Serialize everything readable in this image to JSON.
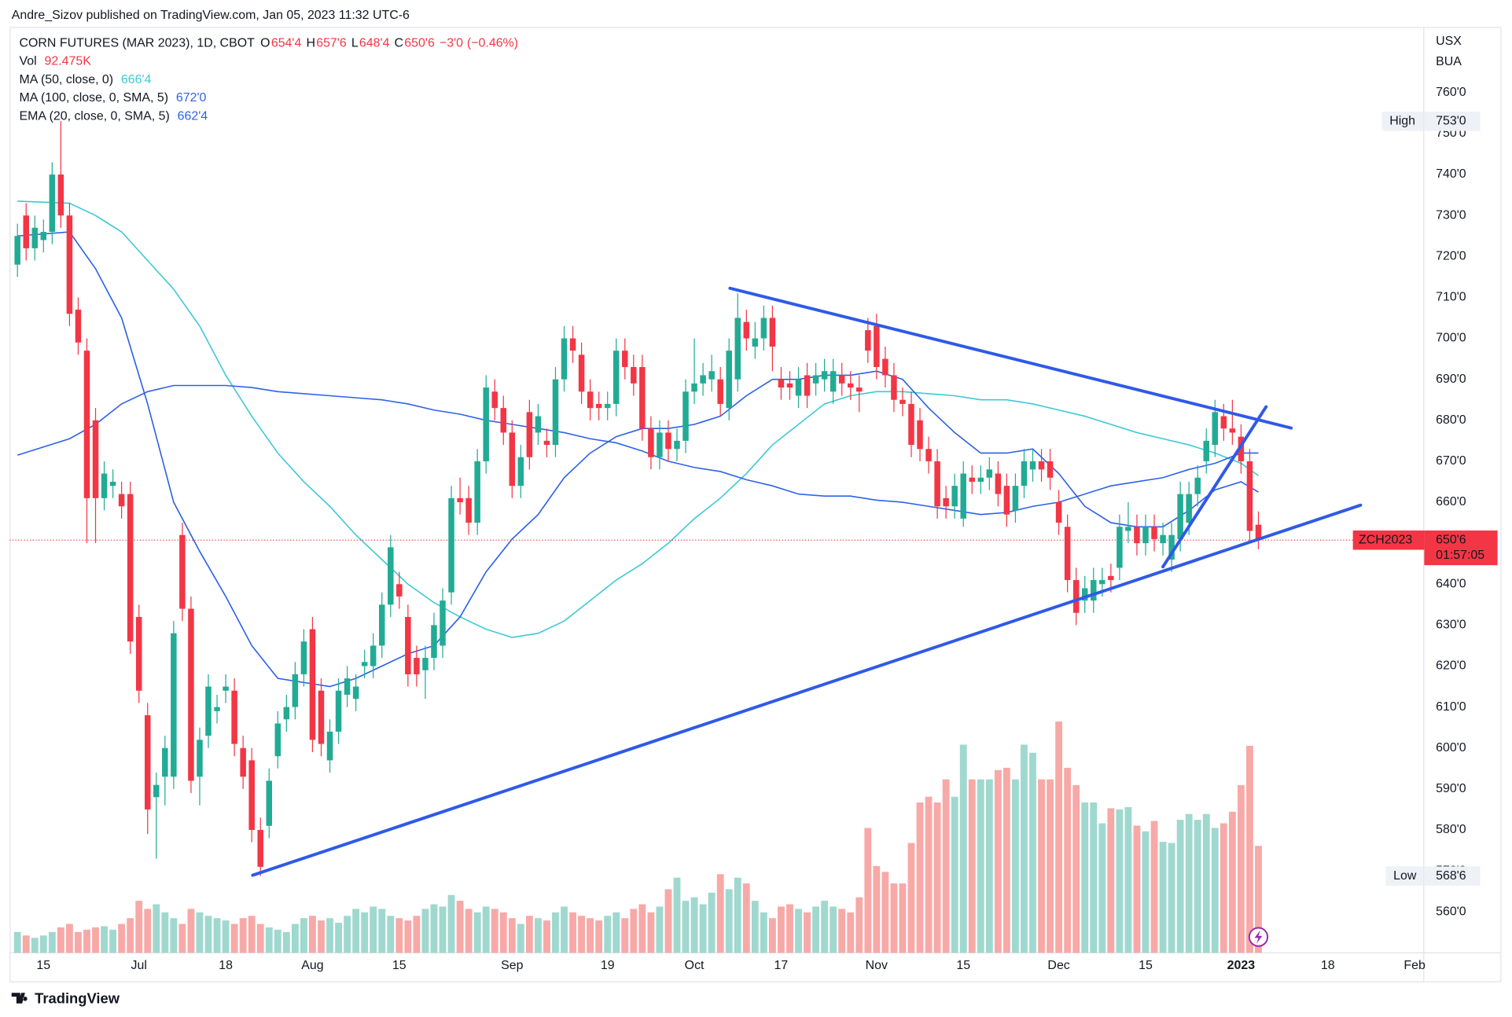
{
  "header": {
    "publisher": "Andre_Sizov published on TradingView.com, Jan 05, 2023 11:32 UTC-6"
  },
  "footer": {
    "brand": "TradingView"
  },
  "chart_data": {
    "type": "candlestick",
    "symbol": "CORN FUTURES (MAR 2023), 1D, CBOT",
    "ohlc_keys": [
      "O",
      "H",
      "L",
      "C"
    ],
    "last_labels": {
      "open": "654'4",
      "high": "657'6",
      "low": "648'4",
      "close": "650'6"
    },
    "change": {
      "value": -3,
      "label": "−3'0"
    },
    "change_pct": {
      "value": -0.46,
      "label": "(−0.46%)"
    },
    "volume_name": "Vol",
    "volume_last_label": "92.475K",
    "currency": "USX",
    "unit": "BUA",
    "up_color": "#22ab94",
    "down_color": "#f23645",
    "volume_up_color": "#9fd8cf",
    "volume_down_color": "#f7a9a7",
    "grid": false,
    "xlim": [
      -0.9,
      162
    ],
    "ylim": [
      550,
      776
    ],
    "xticks": [
      {
        "value": 3,
        "label": "15"
      },
      {
        "value": 14,
        "label": "Jul"
      },
      {
        "value": 24,
        "label": "18"
      },
      {
        "value": 34,
        "label": "Aug"
      },
      {
        "value": 44,
        "label": "15"
      },
      {
        "value": 57,
        "label": "Sep"
      },
      {
        "value": 68,
        "label": "19"
      },
      {
        "value": 78,
        "label": "Oct"
      },
      {
        "value": 88,
        "label": "17"
      },
      {
        "value": 99,
        "label": "Nov"
      },
      {
        "value": 109,
        "label": "15"
      },
      {
        "value": 120,
        "label": "Dec"
      },
      {
        "value": 130,
        "label": "15"
      },
      {
        "value": 141,
        "label": "2023"
      },
      {
        "value": 151,
        "label": "18"
      },
      {
        "value": 161,
        "label": "Feb"
      }
    ],
    "yticks": [
      {
        "value": 560,
        "label": "560'0"
      },
      {
        "value": 570,
        "label": "570'0"
      },
      {
        "value": 580,
        "label": "580'0"
      },
      {
        "value": 590,
        "label": "590'0"
      },
      {
        "value": 600,
        "label": "600'0"
      },
      {
        "value": 610,
        "label": "610'0"
      },
      {
        "value": 620,
        "label": "620'0"
      },
      {
        "value": 630,
        "label": "630'0"
      },
      {
        "value": 640,
        "label": "640'0"
      },
      {
        "value": 650,
        "label": "650'0"
      },
      {
        "value": 660,
        "label": "660'0"
      },
      {
        "value": 670,
        "label": "670'0"
      },
      {
        "value": 680,
        "label": "680'0"
      },
      {
        "value": 690,
        "label": "690'0"
      },
      {
        "value": 700,
        "label": "700'0"
      },
      {
        "value": 710,
        "label": "710'0"
      },
      {
        "value": 720,
        "label": "720'0"
      },
      {
        "value": 730,
        "label": "730'0"
      },
      {
        "value": 740,
        "label": "740'0"
      },
      {
        "value": 750,
        "label": "750'0"
      },
      {
        "value": 760,
        "label": "760'0"
      }
    ],
    "high_marker": {
      "name": "High",
      "value": 753,
      "label": "753'0"
    },
    "low_marker": {
      "name": "Low",
      "value": 568.75,
      "label": "568'6"
    },
    "price_label": {
      "symbol": "ZCH2023",
      "value": 650.75,
      "label": "650'6",
      "countdown": "01:57:05",
      "color": "#f23645"
    },
    "open": [
      718,
      730,
      722,
      724,
      726,
      740,
      730,
      707,
      697,
      680,
      661,
      664,
      662,
      662,
      632,
      608,
      588,
      593,
      593,
      652,
      634,
      593,
      603,
      609,
      614,
      614,
      600,
      597,
      580,
      581,
      598,
      607,
      610,
      618,
      629,
      614,
      597,
      604,
      613,
      612,
      620,
      620,
      625,
      635,
      640,
      632,
      622,
      619,
      622,
      625,
      638,
      661,
      661,
      655,
      670,
      687,
      683,
      677,
      664,
      682,
      677,
      675,
      674,
      690,
      700,
      696,
      687,
      684,
      683,
      684,
      697,
      693,
      693,
      678,
      671,
      677,
      673,
      675,
      687,
      689,
      690,
      690,
      683,
      690,
      704,
      698,
      700,
      705,
      690,
      689,
      686,
      691,
      689,
      690,
      687,
      691,
      689,
      688,
      702,
      703,
      695,
      691,
      685,
      684,
      680,
      673,
      670,
      661,
      659,
      656,
      666,
      665,
      666,
      667,
      664,
      658,
      664,
      668,
      670,
      670,
      660,
      654,
      641,
      636,
      636,
      640,
      642,
      644,
      653,
      654,
      650,
      654,
      650,
      646,
      651,
      655,
      662,
      670,
      674,
      681,
      678,
      676,
      670,
      654.5
    ],
    "high": [
      728,
      733,
      730,
      729,
      743,
      753,
      733,
      710,
      700,
      683,
      670,
      668,
      665,
      665,
      635,
      611,
      594,
      603,
      631,
      655,
      637,
      605,
      618,
      613,
      618,
      617,
      603,
      600,
      583,
      595,
      609,
      613,
      621,
      629,
      632,
      617,
      607,
      617,
      620,
      618,
      624,
      628,
      638,
      652,
      643,
      635,
      625,
      625,
      633,
      639,
      664,
      666,
      664,
      673,
      691,
      690,
      686,
      680,
      674,
      685,
      684,
      678,
      693,
      703,
      703,
      699,
      690,
      687,
      687,
      700,
      700,
      696,
      696,
      681,
      680,
      680,
      678,
      690,
      700,
      694,
      696,
      693,
      700,
      711,
      707,
      704,
      708,
      708,
      693,
      692,
      693,
      694,
      694,
      695,
      695,
      694,
      692,
      691,
      705,
      706,
      698,
      694,
      688,
      687,
      683,
      676,
      673,
      664,
      667,
      670,
      669,
      669,
      671,
      670,
      667,
      667,
      673,
      673,
      673,
      673,
      663,
      657,
      644,
      642,
      644,
      644,
      645,
      657,
      660,
      657,
      657,
      657,
      655,
      655,
      665,
      665,
      669,
      678,
      685,
      684,
      685,
      679,
      673,
      657.75
    ],
    "low": [
      715,
      719,
      719,
      721,
      723,
      727,
      703,
      696,
      650,
      650,
      658,
      661,
      656,
      623,
      611,
      579,
      573,
      586,
      590,
      631,
      589,
      586,
      600,
      606,
      611,
      598,
      590,
      577,
      568.75,
      578,
      595,
      604,
      607,
      615,
      599,
      598,
      594,
      601,
      610,
      609,
      617,
      617,
      622,
      632,
      634,
      615,
      615,
      612,
      619,
      622,
      635,
      657,
      652,
      652,
      667,
      680,
      674,
      661,
      661,
      668,
      674,
      671,
      671,
      687,
      694,
      684,
      680,
      680,
      680,
      681,
      690,
      686,
      675,
      668,
      668,
      670,
      670,
      672,
      684,
      686,
      687,
      681,
      680,
      687,
      697,
      695,
      697,
      692,
      685,
      685,
      683,
      683,
      686,
      687,
      684,
      686,
      685,
      682,
      694,
      690,
      688,
      682,
      681,
      671,
      670,
      667,
      656,
      656,
      656,
      654,
      662,
      662,
      663,
      659,
      654,
      655,
      661,
      665,
      665,
      663,
      652,
      638,
      630,
      633,
      633,
      637,
      638,
      641,
      650,
      647,
      647,
      648,
      647,
      643,
      648,
      652,
      659,
      667,
      671,
      675,
      674,
      667,
      650,
      648.5
    ],
    "close": [
      725,
      722,
      727,
      726,
      740,
      730,
      706,
      699,
      661,
      661,
      667,
      665,
      659,
      626,
      614,
      585,
      591,
      600,
      628,
      634,
      592,
      602,
      615,
      610,
      615,
      601,
      593,
      580,
      571,
      592,
      606,
      610,
      618,
      626,
      602,
      601,
      604,
      614,
      617,
      615,
      621,
      625,
      635,
      649,
      637,
      618,
      618,
      622,
      630,
      636,
      661,
      660,
      655,
      670,
      688,
      683,
      677,
      664,
      671,
      671,
      681,
      674,
      690,
      700,
      697,
      687,
      683,
      683,
      684,
      697,
      693,
      689,
      678,
      671,
      677,
      673,
      675,
      687,
      689,
      691,
      692,
      684,
      697,
      705,
      700,
      700,
      705,
      698,
      688,
      688,
      690,
      686,
      691,
      692,
      692,
      689,
      688,
      687,
      697,
      693,
      691,
      685,
      684,
      674,
      673,
      670,
      659,
      659,
      664,
      667,
      665,
      666,
      668,
      662,
      657,
      664,
      670,
      670,
      668,
      666,
      655,
      641,
      633,
      639,
      641,
      641,
      641,
      654,
      654,
      650,
      654,
      651,
      652,
      652,
      662,
      662,
      666,
      675,
      682,
      678,
      677,
      670,
      653,
      650.75
    ],
    "volume": [
      18000,
      15000,
      13000,
      15000,
      18000,
      22000,
      25000,
      18000,
      20000,
      22000,
      23000,
      20000,
      25000,
      30000,
      45000,
      38000,
      42000,
      35000,
      30000,
      25000,
      38000,
      35000,
      32000,
      30000,
      28000,
      25000,
      30000,
      32000,
      25000,
      22000,
      20000,
      18000,
      25000,
      30000,
      32000,
      28000,
      30000,
      26000,
      32000,
      38000,
      35000,
      40000,
      38000,
      32000,
      30000,
      28000,
      32000,
      38000,
      42000,
      40000,
      50000,
      45000,
      38000,
      35000,
      40000,
      38000,
      35000,
      30000,
      25000,
      32000,
      30000,
      28000,
      35000,
      40000,
      35000,
      32000,
      30000,
      28000,
      32000,
      35000,
      30000,
      38000,
      42000,
      35000,
      40000,
      55000,
      65000,
      45000,
      48000,
      42000,
      52000,
      68000,
      55000,
      65000,
      60000,
      45000,
      35000,
      30000,
      40000,
      42000,
      38000,
      35000,
      40000,
      45000,
      40000,
      38000,
      35000,
      48000,
      108000,
      75000,
      70000,
      60000,
      60000,
      95000,
      130000,
      135000,
      130000,
      150000,
      135000,
      180000,
      150000,
      150000,
      150000,
      158000,
      160000,
      150000,
      180000,
      173000,
      150000,
      150000,
      200000,
      160000,
      145000,
      130000,
      130000,
      112000,
      125000,
      124000,
      126000,
      110000,
      105000,
      114000,
      96000,
      95000,
      115000,
      120000,
      115000,
      120000,
      108000,
      112000,
      122000,
      145000,
      179000,
      92475
    ],
    "series": [
      {
        "name": "MA (50, close, 0)",
        "color": "#3cc9d6",
        "last_label": "666'4",
        "x": [
          0,
          6,
          9,
          12,
          15,
          18,
          21,
          24,
          27,
          30,
          33,
          36,
          39,
          42,
          45,
          48,
          51,
          54,
          57,
          60,
          63,
          66,
          69,
          72,
          75,
          78,
          81,
          84,
          87,
          90,
          93,
          96,
          99,
          102,
          105,
          108,
          111,
          114,
          117,
          120,
          123,
          126,
          129,
          132,
          135,
          138,
          141,
          143
        ],
        "values": [
          733.5,
          733,
          730,
          726,
          719,
          712,
          703,
          691,
          681,
          672,
          665,
          659,
          652,
          646,
          640,
          635.5,
          632,
          629,
          627,
          628,
          631,
          636,
          641,
          645,
          650,
          656,
          661,
          667,
          674,
          679,
          684,
          686,
          687,
          687,
          686.5,
          686,
          685,
          685,
          684,
          682.5,
          681,
          679,
          677,
          675.5,
          674,
          672,
          669.5,
          666.5
        ]
      },
      {
        "name": "MA (100, close, 0, SMA, 5)",
        "color": "#2f62e8",
        "last_label": "672'0",
        "x": [
          0,
          6,
          9,
          12,
          15,
          18,
          21,
          24,
          27,
          30,
          33,
          36,
          39,
          42,
          45,
          48,
          51,
          54,
          57,
          60,
          63,
          66,
          69,
          72,
          75,
          78,
          81,
          84,
          87,
          90,
          93,
          96,
          99,
          102,
          105,
          108,
          111,
          114,
          117,
          120,
          123,
          126,
          129,
          132,
          135,
          138,
          141,
          143
        ],
        "values": [
          671.5,
          675.5,
          679,
          684,
          687,
          688.5,
          688.5,
          688.5,
          688,
          687,
          686.5,
          686,
          685.5,
          685,
          684,
          682.5,
          681.5,
          680,
          679,
          678,
          677,
          675.5,
          674.5,
          672.5,
          670,
          668.5,
          667.5,
          665.5,
          664,
          662,
          661.5,
          661.5,
          660.5,
          660,
          659,
          658,
          657,
          657.5,
          659,
          660,
          662,
          664,
          665,
          666,
          668,
          669.5,
          672,
          672
        ]
      },
      {
        "name": "EMA (20, close, 0, SMA, 5)",
        "color": "#2a5fe6",
        "last_label": "662'4",
        "x": [
          0,
          6,
          9,
          12,
          15,
          18,
          21,
          24,
          27,
          30,
          33,
          36,
          39,
          42,
          45,
          48,
          51,
          54,
          57,
          60,
          63,
          66,
          69,
          72,
          75,
          78,
          81,
          84,
          87,
          90,
          93,
          96,
          99,
          102,
          105,
          108,
          111,
          114,
          117,
          120,
          123,
          126,
          129,
          132,
          135,
          138,
          141,
          143
        ],
        "values": [
          725,
          726,
          717,
          705,
          684,
          660,
          648,
          637,
          625,
          617,
          616,
          615,
          617,
          620,
          623,
          625,
          632,
          643,
          651,
          657,
          666,
          672,
          676,
          678,
          678,
          679,
          681,
          686,
          690,
          690,
          691,
          691,
          692,
          690,
          683,
          677,
          672,
          672,
          673,
          667,
          659,
          655,
          654,
          654,
          658,
          663,
          665,
          662.5
        ]
      }
    ]
  }
}
